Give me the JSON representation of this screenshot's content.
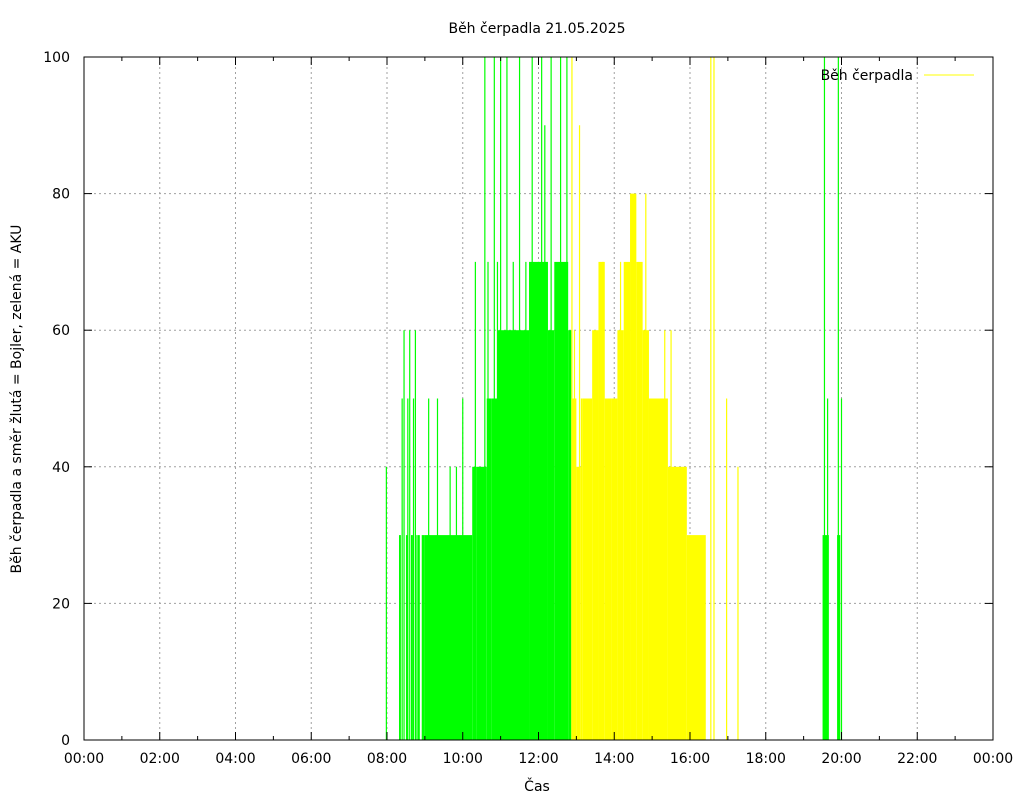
{
  "chart_data": {
    "type": "bar",
    "title": "Běh čerpadla 21.05.2025",
    "xlabel": "Čas",
    "ylabel": "Běh čerpadla a směr žlutá = Bojler, zelená = AKU",
    "xlim": [
      0,
      1440
    ],
    "ylim": [
      0,
      100
    ],
    "x_unit": "minutes",
    "x_ticks": [
      "00:00",
      "02:00",
      "04:00",
      "06:00",
      "08:00",
      "10:00",
      "12:00",
      "14:00",
      "16:00",
      "18:00",
      "20:00",
      "22:00",
      "00:00"
    ],
    "y_ticks": [
      0,
      20,
      40,
      60,
      80,
      100
    ],
    "grid": true,
    "legend": {
      "position": "top-right",
      "entries": [
        {
          "label": "Běh čerpadla",
          "color": "#ffff00"
        }
      ]
    },
    "colors": {
      "AKU": "#00ff00",
      "Bojler": "#ffff00"
    },
    "series": [
      {
        "key": "AKU",
        "color": "#00ff00",
        "spikes": [
          {
            "t": "07:59",
            "v": 40
          },
          {
            "t": "08:24",
            "v": 50
          },
          {
            "t": "08:27",
            "v": 60
          },
          {
            "t": "08:33",
            "v": 50
          },
          {
            "t": "08:36",
            "v": 60
          },
          {
            "t": "08:42",
            "v": 50
          },
          {
            "t": "08:45",
            "v": 60
          },
          {
            "t": "09:06",
            "v": 50
          },
          {
            "t": "09:20",
            "v": 50
          },
          {
            "t": "09:40",
            "v": 40
          },
          {
            "t": "09:50",
            "v": 40
          },
          {
            "t": "10:00",
            "v": 50
          },
          {
            "t": "10:20",
            "v": 70
          },
          {
            "t": "10:35",
            "v": 100
          },
          {
            "t": "10:40",
            "v": 70
          },
          {
            "t": "10:50",
            "v": 100
          },
          {
            "t": "10:55",
            "v": 70
          },
          {
            "t": "11:00",
            "v": 100
          },
          {
            "t": "11:10",
            "v": 100
          },
          {
            "t": "11:20",
            "v": 70
          },
          {
            "t": "11:30",
            "v": 100
          },
          {
            "t": "11:40",
            "v": 70
          },
          {
            "t": "11:50",
            "v": 100
          },
          {
            "t": "12:00",
            "v": 70
          },
          {
            "t": "12:05",
            "v": 100
          },
          {
            "t": "12:10",
            "v": 90
          },
          {
            "t": "12:20",
            "v": 100
          },
          {
            "t": "12:35",
            "v": 100
          },
          {
            "t": "12:45",
            "v": 100
          },
          {
            "t": "19:33",
            "v": 100
          },
          {
            "t": "19:38",
            "v": 50
          },
          {
            "t": "19:55",
            "v": 100
          },
          {
            "t": "20:00",
            "v": 50
          }
        ],
        "segments": [
          {
            "from": "08:19",
            "to": "08:22",
            "v": 30
          },
          {
            "from": "08:30",
            "to": "08:33",
            "v": 30
          },
          {
            "from": "08:38",
            "to": "08:41",
            "v": 30
          },
          {
            "from": "08:45",
            "to": "08:47",
            "v": 30
          },
          {
            "from": "08:48",
            "to": "08:52",
            "v": 30
          },
          {
            "from": "08:55",
            "to": "09:00",
            "v": 30
          },
          {
            "from": "09:00",
            "to": "10:15",
            "v": 30
          },
          {
            "from": "10:15",
            "to": "10:22",
            "v": 40
          },
          {
            "from": "10:22",
            "to": "10:38",
            "v": 40
          },
          {
            "from": "10:38",
            "to": "10:45",
            "v": 50
          },
          {
            "from": "10:45",
            "to": "10:55",
            "v": 50
          },
          {
            "from": "10:55",
            "to": "11:30",
            "v": 60
          },
          {
            "from": "11:30",
            "to": "11:45",
            "v": 60
          },
          {
            "from": "11:45",
            "to": "12:15",
            "v": 70
          },
          {
            "from": "12:15",
            "to": "12:25",
            "v": 60
          },
          {
            "from": "12:25",
            "to": "12:47",
            "v": 70
          },
          {
            "from": "12:47",
            "to": "12:52",
            "v": 60
          },
          {
            "from": "19:30",
            "to": "19:40",
            "v": 30
          },
          {
            "from": "19:53",
            "to": "19:58",
            "v": 30
          }
        ]
      },
      {
        "key": "Bojler",
        "color": "#ffff00",
        "spikes": [
          {
            "t": "12:53",
            "v": 100
          },
          {
            "t": "12:57",
            "v": 60
          },
          {
            "t": "13:05",
            "v": 90
          },
          {
            "t": "13:05",
            "v": 40
          },
          {
            "t": "13:30",
            "v": 60
          },
          {
            "t": "13:38",
            "v": 60
          },
          {
            "t": "13:42",
            "v": 70
          },
          {
            "t": "14:10",
            "v": 70
          },
          {
            "t": "14:50",
            "v": 80
          },
          {
            "t": "15:20",
            "v": 60
          },
          {
            "t": "15:30",
            "v": 60
          },
          {
            "t": "16:33",
            "v": 100
          },
          {
            "t": "16:38",
            "v": 100
          },
          {
            "t": "16:58",
            "v": 50
          },
          {
            "t": "17:16",
            "v": 40
          }
        ],
        "segments": [
          {
            "from": "12:52",
            "to": "13:00",
            "v": 50
          },
          {
            "from": "13:00",
            "to": "13:07",
            "v": 40
          },
          {
            "from": "13:07",
            "to": "13:10",
            "v": 50
          },
          {
            "from": "13:10",
            "to": "13:25",
            "v": 50
          },
          {
            "from": "13:25",
            "to": "13:35",
            "v": 60
          },
          {
            "from": "13:35",
            "to": "13:45",
            "v": 70
          },
          {
            "from": "13:45",
            "to": "13:55",
            "v": 50
          },
          {
            "from": "13:55",
            "to": "14:05",
            "v": 50
          },
          {
            "from": "14:05",
            "to": "14:15",
            "v": 60
          },
          {
            "from": "14:15",
            "to": "14:25",
            "v": 70
          },
          {
            "from": "14:25",
            "to": "14:35",
            "v": 80
          },
          {
            "from": "14:35",
            "to": "14:45",
            "v": 70
          },
          {
            "from": "14:45",
            "to": "14:55",
            "v": 60
          },
          {
            "from": "14:55",
            "to": "15:25",
            "v": 50
          },
          {
            "from": "15:25",
            "to": "15:30",
            "v": 40
          },
          {
            "from": "15:30",
            "to": "15:55",
            "v": 40
          },
          {
            "from": "15:55",
            "to": "16:25",
            "v": 30
          }
        ]
      }
    ]
  }
}
